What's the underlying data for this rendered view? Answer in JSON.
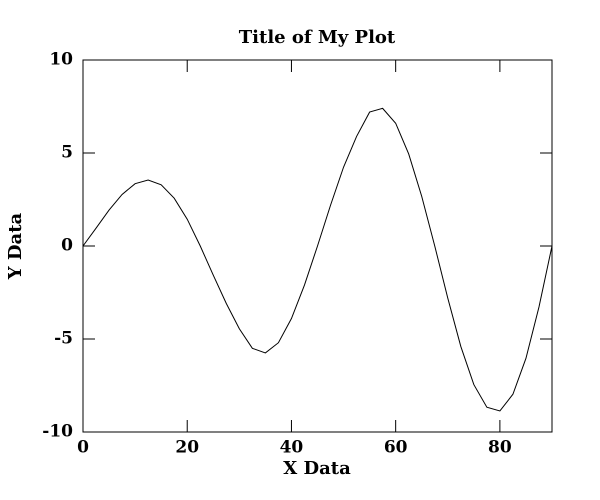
{
  "chart_data": {
    "type": "line",
    "title": "Title of My Plot",
    "x_label": "X Data",
    "y_label": "Y Data",
    "x": [
      0,
      2.5,
      5,
      7.5,
      10,
      12.5,
      15,
      17.5,
      20,
      22.5,
      25,
      27.5,
      30,
      32.5,
      35,
      37.5,
      40,
      42.5,
      45,
      47.5,
      50,
      52.5,
      55,
      57.5,
      60,
      62.5,
      65,
      67.5,
      70,
      72.5,
      75,
      77.5,
      80,
      82.5,
      85,
      87.5,
      90
    ],
    "series": [
      {
        "color": "#000000",
        "values": [
          0,
          0.96,
          1.93,
          2.77,
          3.35,
          3.55,
          3.29,
          2.57,
          1.44,
          0,
          -1.57,
          -3.09,
          -4.45,
          -5.5,
          -5.75,
          -5.2,
          -3.9,
          -2.1,
          0,
          2.19,
          4.24,
          5.89,
          7.2,
          7.4,
          6.6,
          4.95,
          2.67,
          0,
          -2.8,
          -5.4,
          -7.45,
          -8.67,
          -8.87,
          -7.97,
          -6.04,
          -3.28,
          0
        ]
      }
    ],
    "xlim": [
      0,
      90
    ],
    "xticks": [
      0,
      20,
      40,
      60,
      80
    ],
    "ylim": [
      -10,
      10
    ],
    "yticks": [
      -10,
      -5,
      0,
      5,
      10
    ]
  }
}
